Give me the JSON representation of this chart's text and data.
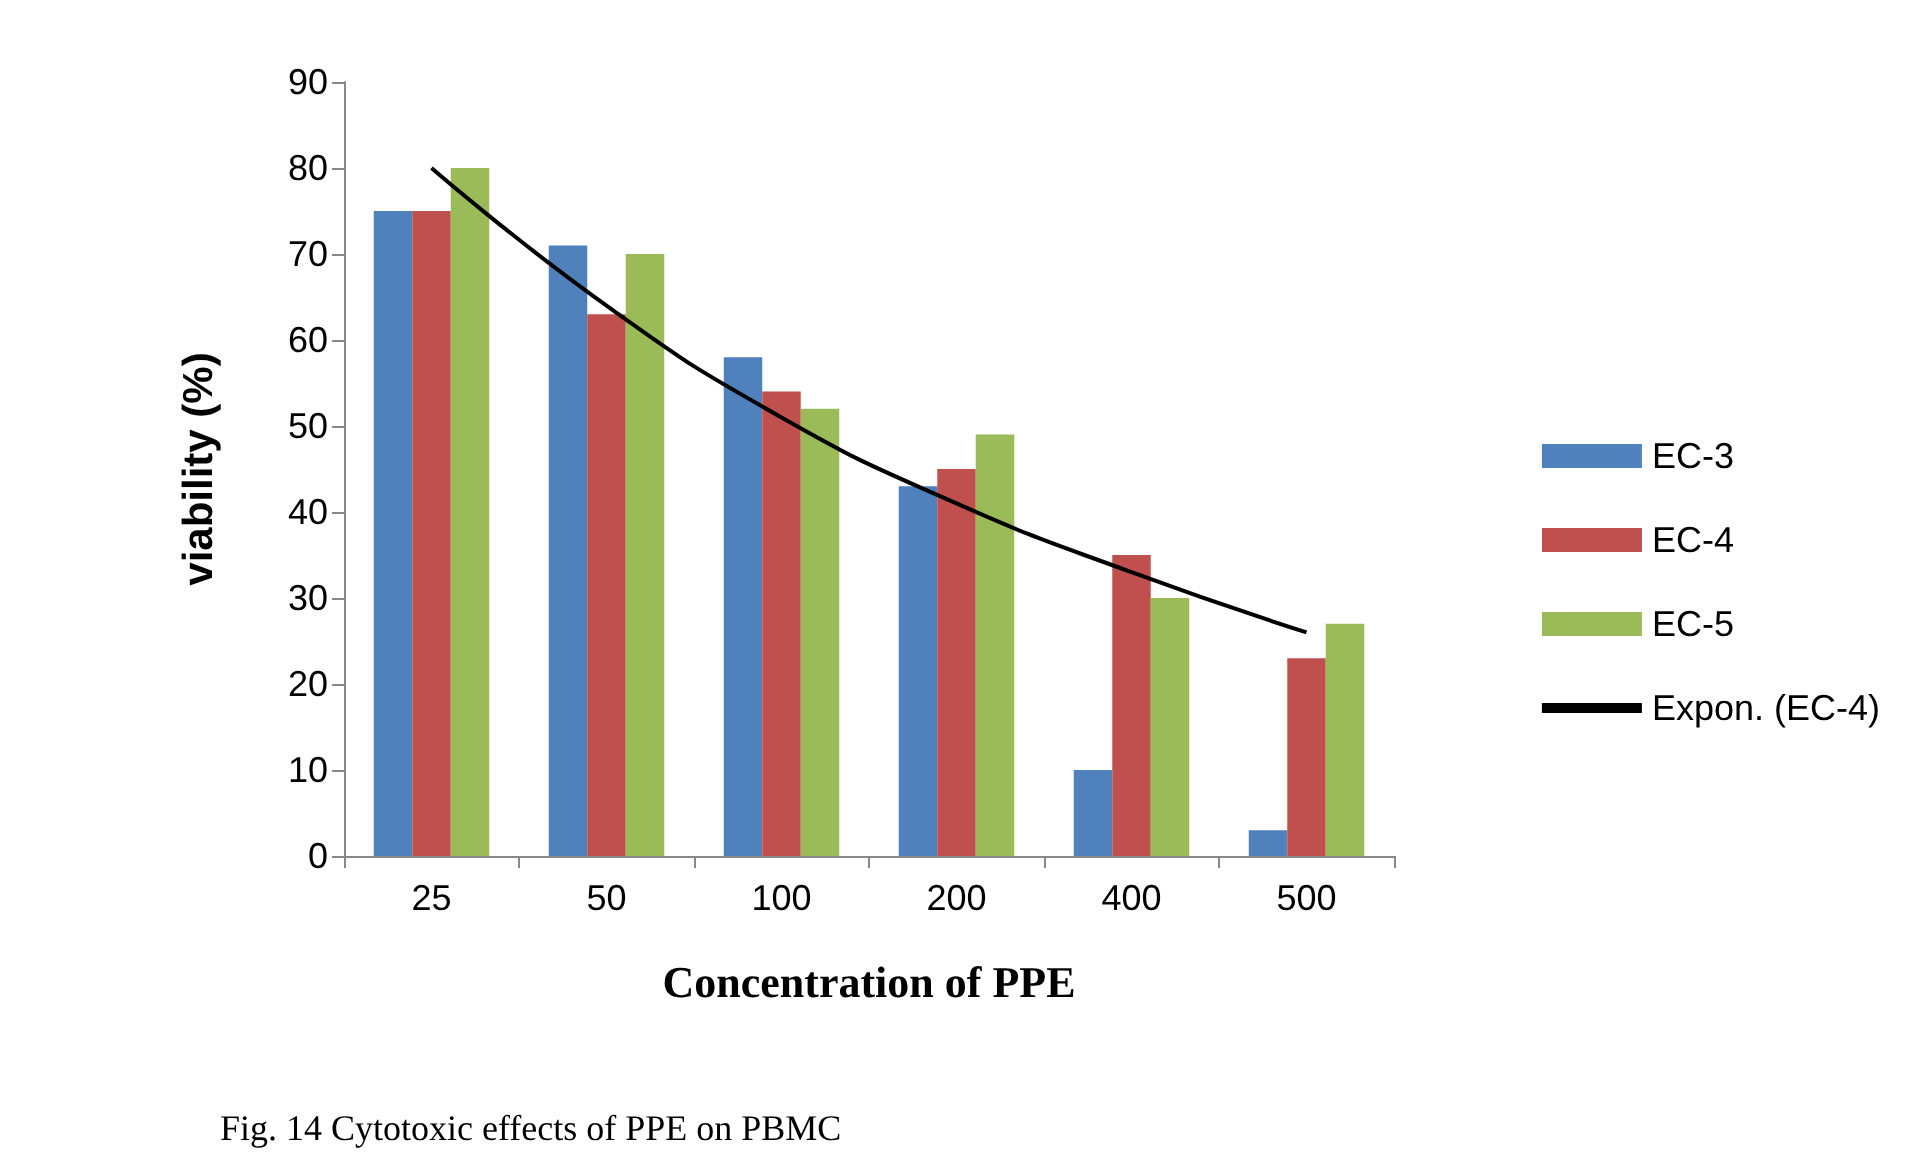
{
  "chart_data": {
    "type": "bar",
    "xlabel": "Concentration of PPE",
    "ylabel": "viability (%)",
    "categories": [
      "25",
      "50",
      "100",
      "200",
      "400",
      "500"
    ],
    "series": [
      {
        "name": "EC-3",
        "color": "#4f81bd",
        "values": [
          75,
          71,
          58,
          43,
          10,
          3
        ]
      },
      {
        "name": "EC-4",
        "color": "#c0504d",
        "values": [
          75,
          63,
          54,
          45,
          35,
          23
        ]
      },
      {
        "name": "EC-5",
        "color": "#9bbb59",
        "values": [
          80,
          70,
          52,
          49,
          30,
          27
        ]
      },
      {
        "name": "Expon. (EC-4)",
        "type": "line",
        "color": "#000000",
        "marker": "none",
        "x": [
          "25",
          "50",
          "100",
          "200",
          "400",
          "500"
        ],
        "values": [
          80,
          64,
          51,
          41,
          33,
          26
        ]
      }
    ],
    "ylim": [
      0,
      90
    ],
    "yticks": [
      0,
      10,
      20,
      30,
      40,
      50,
      60,
      70,
      80,
      90
    ],
    "grid": false,
    "legend": "right",
    "annotations": [
      "Fig. 14 Cytotoxic effects of PPE on PBMC"
    ]
  }
}
